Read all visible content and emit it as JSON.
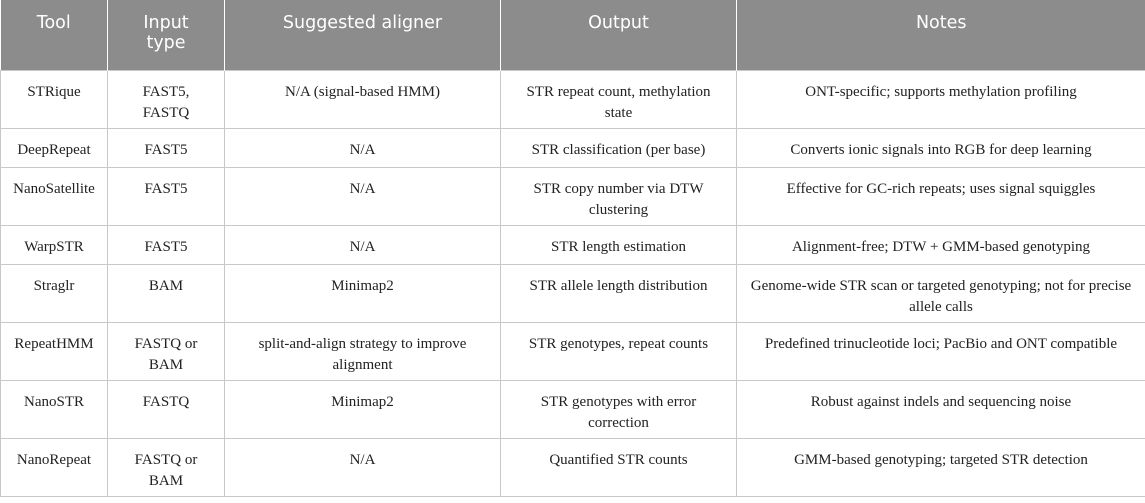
{
  "headers": [
    "Tool",
    "Input type",
    "Suggested aligner",
    "Output",
    "Notes"
  ],
  "rows": [
    {
      "tool": "STRique",
      "input": "FAST5, FASTQ",
      "aligner": "N/A (signal-based HMM)",
      "output": "STR repeat count, methylation state",
      "notes": "ONT-specific; supports methylation profiling"
    },
    {
      "tool": "DeepRepeat",
      "input": "FAST5",
      "aligner": "N/A",
      "output": "STR classification (per base)",
      "notes": "Converts ionic signals into RGB for deep learning"
    },
    {
      "tool": "NanoSatellite",
      "input": "FAST5",
      "aligner": "N/A",
      "output": "STR copy number via DTW clustering",
      "notes": "Effective for GC-rich repeats; uses signal squiggles"
    },
    {
      "tool": "WarpSTR",
      "input": "FAST5",
      "aligner": "N/A",
      "output": "STR length estimation",
      "notes": "Alignment-free; DTW + GMM-based genotyping"
    },
    {
      "tool": "Straglr",
      "input": "BAM",
      "aligner": "Minimap2",
      "output": "STR allele length distribution",
      "notes": "Genome-wide STR scan or targeted genotyping; not for precise allele calls"
    },
    {
      "tool": "RepeatHMM",
      "input": "FASTQ or BAM",
      "aligner": "split-and-align strategy to improve alignment",
      "output": "STR genotypes, repeat counts",
      "notes": "Predefined trinucleotide loci; PacBio and ONT compatible"
    },
    {
      "tool": "NanoSTR",
      "input": "FASTQ",
      "aligner": "Minimap2",
      "output": "STR genotypes with error correction",
      "notes": "Robust against indels and sequencing noise"
    },
    {
      "tool": "NanoRepeat",
      "input": "FASTQ or BAM",
      "aligner": "N/A",
      "output": "Quantified STR counts",
      "notes": "GMM-based genotyping; targeted STR detection"
    }
  ]
}
